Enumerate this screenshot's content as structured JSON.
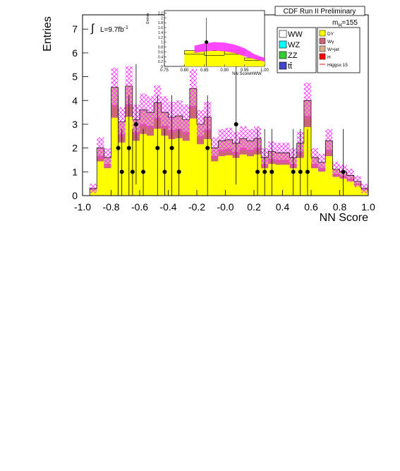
{
  "chart_data": [
    {
      "type": "histogram",
      "panel": "main",
      "ylabel": "Entries",
      "xlabel": "NN Score",
      "xlim": [
        -1.0,
        1.0
      ],
      "ylim": [
        0,
        7.6
      ],
      "xticks": [
        "-1.0",
        "-0.8",
        "-0.6",
        "-0.4",
        "-0.2",
        "-0.0",
        "0.2",
        "0.4",
        "0.6",
        "0.8",
        "1.0"
      ],
      "yticks": [
        "0",
        "1",
        "2",
        "3",
        "4",
        "5",
        "6",
        "7"
      ],
      "bin_width": 0.05,
      "x_start": -0.95,
      "stack_totals": [
        0.3,
        2.0,
        1.6,
        4.55,
        3.1,
        4.6,
        3.2,
        3.6,
        3.5,
        3.9,
        3.5,
        3.3,
        3.35,
        3.2,
        4.5,
        3.0,
        3.3,
        2.0,
        2.3,
        2.35,
        2.2,
        2.4,
        2.3,
        2.4,
        1.6,
        1.85,
        1.8,
        1.8,
        1.6,
        2.2,
        4.0,
        1.6,
        1.4,
        2.3,
        1.1,
        1.0,
        0.85,
        0.6,
        0.3
      ],
      "yellow_fraction": 0.72,
      "pink_fraction": 0.12,
      "data_points": [
        {
          "x": -0.75,
          "y": 2
        },
        {
          "x": -0.725,
          "y": 1
        },
        {
          "x": -0.675,
          "y": 2
        },
        {
          "x": -0.65,
          "y": 1
        },
        {
          "x": -0.625,
          "y": 3
        },
        {
          "x": -0.575,
          "y": 1
        },
        {
          "x": -0.475,
          "y": 2
        },
        {
          "x": -0.425,
          "y": 1
        },
        {
          "x": -0.375,
          "y": 2
        },
        {
          "x": -0.325,
          "y": 1
        },
        {
          "x": -0.125,
          "y": 2
        },
        {
          "x": 0.075,
          "y": 3
        },
        {
          "x": 0.225,
          "y": 1
        },
        {
          "x": 0.275,
          "y": 1
        },
        {
          "x": 0.325,
          "y": 1
        },
        {
          "x": 0.475,
          "y": 1
        },
        {
          "x": 0.525,
          "y": 1
        },
        {
          "x": 0.575,
          "y": 1
        },
        {
          "x": 0.825,
          "y": 1
        }
      ],
      "annotations": {
        "lumi_prefix": "∫",
        "lumi_text": "L=9.7fb",
        "lumi_sup": "-1",
        "title": "CDF Run II Preliminary",
        "mass_label": "m",
        "mass_sub": "H",
        "mass_value": "=155"
      },
      "legend": [
        {
          "name": "WW",
          "color": "#ffffff"
        },
        {
          "name": "WZ",
          "color": "#00ffff"
        },
        {
          "name": "ZZ",
          "color": "#33cc33"
        },
        {
          "name": "tt̄",
          "color": "#4444cc"
        },
        {
          "name": "DY",
          "color": "#ffff00"
        },
        {
          "name": "Wγ",
          "color": "#cc6677"
        },
        {
          "name": "W+jet",
          "color": "#d8b08c"
        },
        {
          "name": "H",
          "color": "#ff0000"
        },
        {
          "name": "Higgsx 15",
          "color": "#ff0000"
        }
      ],
      "colors": {
        "dy": "#ffff00",
        "wgamma": "#cc6677",
        "wjet": "#d8b08c",
        "hatch": "#ff33ff"
      }
    },
    {
      "type": "histogram",
      "panel": "inset",
      "ylabel": "Entries",
      "xlabel": "NN ScoreHWW",
      "xlim": [
        0.75,
        1.0
      ],
      "ylim": [
        0,
        2.3
      ],
      "xticks": [
        "0.75",
        "0.80",
        "0.85",
        "0.90",
        "0.95",
        "1.00"
      ],
      "yticks": [
        "0",
        "0.2",
        "0.4",
        "0.6",
        "0.8",
        "1",
        "1.2",
        "1.4",
        "1.6",
        "1.8",
        "2",
        "2.2"
      ],
      "bins": [
        {
          "x0": 0.8,
          "x1": 0.85,
          "total": 0.65,
          "yellow": 0.5
        },
        {
          "x0": 0.85,
          "x1": 0.9,
          "total": 0.65,
          "yellow": 0.45
        },
        {
          "x0": 0.9,
          "x1": 0.95,
          "total": 0.65,
          "yellow": 0.5
        },
        {
          "x0": 0.95,
          "x1": 1.0,
          "total": 0.35,
          "yellow": 0.25
        }
      ],
      "signal_band": [
        {
          "x": 0.825,
          "lo": 0.55,
          "hi": 0.85
        },
        {
          "x": 0.85,
          "lo": 0.62,
          "hi": 0.95
        },
        {
          "x": 0.875,
          "lo": 0.65,
          "hi": 1.0
        },
        {
          "x": 0.9,
          "lo": 0.62,
          "hi": 0.98
        },
        {
          "x": 0.925,
          "lo": 0.55,
          "hi": 0.9
        },
        {
          "x": 0.95,
          "lo": 0.42,
          "hi": 0.75
        },
        {
          "x": 0.975,
          "lo": 0.3,
          "hi": 0.5
        },
        {
          "x": 1.0,
          "lo": 0.2,
          "hi": 0.35
        }
      ],
      "data_points": [
        {
          "x": 0.855,
          "y": 1.0,
          "err": 1.0
        }
      ]
    }
  ]
}
